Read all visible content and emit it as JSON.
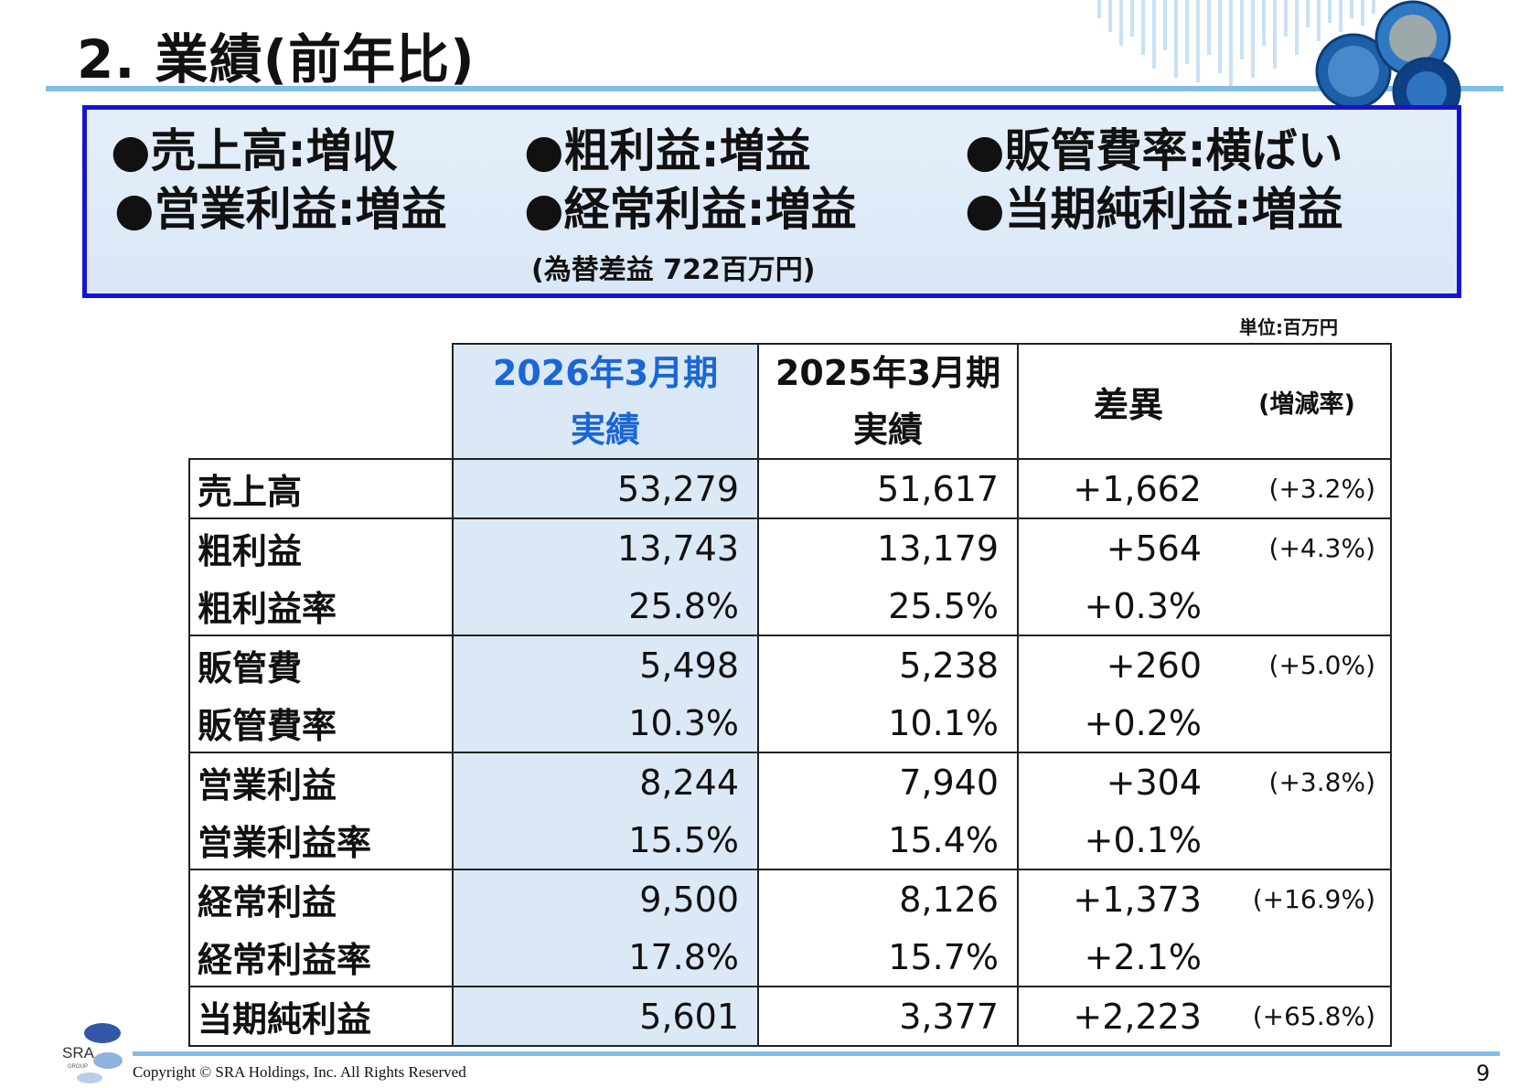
{
  "title": "2. 業績(前年比)",
  "summary": {
    "items": [
      "●売上高:増収",
      "●粗利益:増益",
      "●販管費率:横ばい",
      "●営業利益:増益",
      "●経常利益:増益",
      "●当期純利益:増益"
    ],
    "note": "(為替差益 722百万円)"
  },
  "unit": "単位:百万円",
  "table": {
    "headers": {
      "current_period": "2026年3月期",
      "current_kind": "実績",
      "prior_period": "2025年3月期",
      "prior_kind": "実績",
      "difference": "差異",
      "rate": "(増減率)"
    },
    "rows": [
      {
        "label": "売上高",
        "current": "53,279",
        "prior": "51,617",
        "diff": "+1,662",
        "rate": "(+3.2%)"
      },
      {
        "label": "粗利益",
        "current": "13,743",
        "prior": "13,179",
        "diff": "+564",
        "rate": "(+4.3%)"
      },
      {
        "label": "粗利益率",
        "current": "25.8%",
        "prior": "25.5%",
        "diff": "+0.3%",
        "rate": ""
      },
      {
        "label": "販管費",
        "current": "5,498",
        "prior": "5,238",
        "diff": "+260",
        "rate": "(+5.0%)"
      },
      {
        "label": "販管費率",
        "current": "10.3%",
        "prior": "10.1%",
        "diff": "+0.2%",
        "rate": ""
      },
      {
        "label": "営業利益",
        "current": "8,244",
        "prior": "7,940",
        "diff": "+304",
        "rate": "(+3.8%)"
      },
      {
        "label": "営業利益率",
        "current": "15.5%",
        "prior": "15.4%",
        "diff": "+0.1%",
        "rate": ""
      },
      {
        "label": "経常利益",
        "current": "9,500",
        "prior": "8,126",
        "diff": "+1,373",
        "rate": "(+16.9%)"
      },
      {
        "label": "経常利益率",
        "current": "17.8%",
        "prior": "15.7%",
        "diff": "+2.1%",
        "rate": ""
      },
      {
        "label": "当期純利益",
        "current": "5,601",
        "prior": "3,377",
        "diff": "+2,223",
        "rate": "(+65.8%)"
      }
    ]
  },
  "footer": {
    "logo_text": "SRA",
    "logo_sub": "GROUP",
    "copyright": "Copyright © SRA Holdings, Inc.  All Rights Reserved",
    "page": "9"
  },
  "colors": {
    "accent_rule": "#7fbde6",
    "summary_border": "#1414d6",
    "highlight_column": "#dbe8f5",
    "current_header": "#1a66d6"
  }
}
